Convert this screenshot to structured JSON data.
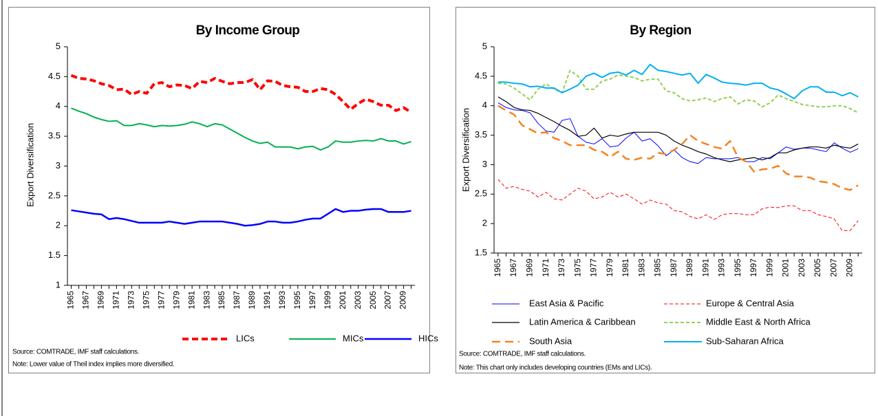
{
  "chart_data": [
    {
      "type": "line",
      "title": "By Income Group",
      "y_label": "Export Diversification",
      "categories": [
        "1965",
        null,
        "1967",
        null,
        "1969",
        null,
        "1971",
        null,
        "1973",
        null,
        "1975",
        null,
        "1977",
        null,
        "1979",
        null,
        "1981",
        null,
        "1983",
        null,
        "1985",
        null,
        "1987",
        null,
        "1989",
        null,
        "1991",
        null,
        "1993",
        null,
        "1995",
        null,
        "1997",
        null,
        "1999",
        null,
        "2001",
        null,
        "2003",
        null,
        "2005",
        null,
        "2007",
        null,
        "2009",
        null
      ],
      "ylim": [
        1,
        5
      ],
      "yticks": [
        1,
        1.5,
        2,
        2.5,
        3,
        3.5,
        4,
        4.5,
        5
      ],
      "grid": false,
      "legend": "bottom",
      "series": [
        {
          "name": "LICs",
          "color": "#ff0000",
          "line_style": "dashed",
          "values": [
            4.52,
            4.47,
            4.46,
            4.43,
            4.38,
            4.35,
            4.28,
            4.29,
            4.2,
            4.25,
            4.22,
            4.38,
            4.4,
            4.33,
            4.36,
            4.35,
            4.3,
            4.42,
            4.4,
            4.47,
            4.42,
            4.38,
            4.4,
            4.4,
            4.45,
            4.28,
            4.43,
            4.42,
            4.35,
            4.33,
            4.32,
            4.25,
            4.25,
            4.3,
            4.28,
            4.2,
            4.08,
            3.95,
            4.05,
            4.12,
            4.08,
            4.02,
            4.02,
            3.93,
            3.98,
            3.9
          ]
        },
        {
          "name": "MICs",
          "color": "#00b050",
          "line_style": "solid",
          "values": [
            3.97,
            3.92,
            3.88,
            3.82,
            3.78,
            3.75,
            3.76,
            3.68,
            3.68,
            3.71,
            3.69,
            3.66,
            3.68,
            3.67,
            3.68,
            3.7,
            3.74,
            3.71,
            3.66,
            3.71,
            3.69,
            3.62,
            3.55,
            3.48,
            3.42,
            3.38,
            3.4,
            3.32,
            3.32,
            3.32,
            3.29,
            3.32,
            3.33,
            3.27,
            3.32,
            3.42,
            3.4,
            3.4,
            3.42,
            3.43,
            3.42,
            3.46,
            3.42,
            3.42,
            3.37,
            3.41
          ]
        },
        {
          "name": "HICs",
          "color": "#0000ff",
          "line_style": "solid",
          "values": [
            2.26,
            2.24,
            2.22,
            2.2,
            2.19,
            2.11,
            2.13,
            2.11,
            2.08,
            2.05,
            2.05,
            2.05,
            2.05,
            2.07,
            2.05,
            2.03,
            2.05,
            2.07,
            2.07,
            2.07,
            2.07,
            2.05,
            2.03,
            2.0,
            2.01,
            2.03,
            2.07,
            2.07,
            2.05,
            2.05,
            2.07,
            2.1,
            2.12,
            2.12,
            2.2,
            2.28,
            2.23,
            2.25,
            2.25,
            2.27,
            2.28,
            2.28,
            2.23,
            2.23,
            2.23,
            2.25
          ]
        }
      ],
      "source": "Source: COMTRADE, IMF staff calculations.",
      "note": "Note: Lower value of Theil index implies more diversified."
    },
    {
      "type": "line",
      "title": "By Region",
      "y_label": "Export Diversification",
      "categories": [
        "1965",
        null,
        "1967",
        null,
        "1969",
        null,
        "1971",
        null,
        "1973",
        null,
        "1975",
        null,
        "1977",
        null,
        "1979",
        null,
        "1981",
        null,
        "1983",
        null,
        "1985",
        null,
        "1987",
        null,
        "1989",
        null,
        "1991",
        null,
        "1993",
        null,
        "1995",
        null,
        "1997",
        null,
        "1999",
        null,
        "2001",
        null,
        "2003",
        null,
        "2005",
        null,
        "2007",
        null,
        "2009",
        null
      ],
      "ylim": [
        1.5,
        5
      ],
      "yticks": [
        1.5,
        2,
        2.5,
        3,
        3.5,
        4,
        4.5,
        5
      ],
      "grid": false,
      "legend": "bottom",
      "series": [
        {
          "name": "East Asia & Pacific",
          "color": "#0000ff",
          "line_style": "solid",
          "values": [
            4.05,
            3.97,
            3.93,
            3.92,
            3.88,
            3.7,
            3.57,
            3.55,
            3.75,
            3.78,
            3.48,
            3.38,
            3.35,
            3.44,
            3.3,
            3.32,
            3.45,
            3.55,
            3.4,
            3.44,
            3.32,
            3.15,
            3.25,
            3.12,
            3.05,
            3.02,
            3.12,
            3.1,
            3.1,
            3.1,
            3.12,
            3.05,
            3.05,
            3.12,
            3.1,
            3.2,
            3.3,
            3.26,
            3.28,
            3.28,
            3.25,
            3.22,
            3.37,
            3.28,
            3.21,
            3.27
          ]
        },
        {
          "name": "Europe & Central Asia",
          "color": "#ff0000",
          "line_style": "dashed",
          "values": [
            2.75,
            2.6,
            2.63,
            2.58,
            2.55,
            2.45,
            2.53,
            2.42,
            2.4,
            2.5,
            2.6,
            2.55,
            2.42,
            2.45,
            2.53,
            2.45,
            2.5,
            2.42,
            2.33,
            2.4,
            2.35,
            2.33,
            2.22,
            2.2,
            2.12,
            2.08,
            2.15,
            2.07,
            2.15,
            2.17,
            2.17,
            2.15,
            2.15,
            2.25,
            2.28,
            2.27,
            2.3,
            2.3,
            2.22,
            2.22,
            2.15,
            2.12,
            2.08,
            1.88,
            1.88,
            2.05
          ]
        },
        {
          "name": "Latin America & Caribbean",
          "color": "#000000",
          "line_style": "solid",
          "values": [
            4.15,
            4.07,
            3.97,
            3.93,
            3.92,
            3.87,
            3.8,
            3.73,
            3.65,
            3.58,
            3.48,
            3.5,
            3.62,
            3.45,
            3.5,
            3.48,
            3.52,
            3.55,
            3.55,
            3.55,
            3.55,
            3.5,
            3.4,
            3.33,
            3.28,
            3.22,
            3.18,
            3.12,
            3.08,
            3.05,
            3.08,
            3.1,
            3.12,
            3.08,
            3.12,
            3.2,
            3.2,
            3.25,
            3.28,
            3.3,
            3.3,
            3.28,
            3.33,
            3.3,
            3.28,
            3.35
          ]
        },
        {
          "name": "Middle East & North Africa",
          "color": "#92d050",
          "line_style": "dashed",
          "values": [
            4.38,
            4.37,
            4.3,
            4.2,
            4.1,
            4.28,
            4.37,
            4.28,
            4.22,
            4.6,
            4.5,
            4.28,
            4.28,
            4.42,
            4.45,
            4.52,
            4.5,
            4.48,
            4.42,
            4.45,
            4.45,
            4.25,
            4.22,
            4.12,
            4.08,
            4.1,
            4.13,
            4.07,
            4.12,
            4.15,
            4.03,
            4.1,
            4.08,
            3.98,
            4.05,
            4.18,
            4.12,
            4.07,
            4.02,
            4.0,
            3.98,
            3.98,
            4.0,
            4.0,
            3.95,
            3.88
          ]
        },
        {
          "name": "South Asia",
          "color": "#f58220",
          "line_style": "long-dashed",
          "values": [
            4.0,
            3.92,
            3.85,
            3.67,
            3.6,
            3.53,
            3.55,
            3.45,
            3.4,
            3.33,
            3.33,
            3.33,
            3.25,
            3.22,
            3.13,
            3.22,
            3.1,
            3.08,
            3.12,
            3.1,
            3.2,
            3.18,
            3.25,
            3.35,
            3.5,
            3.4,
            3.35,
            3.3,
            3.27,
            3.4,
            3.12,
            3.05,
            2.88,
            2.92,
            2.93,
            2.98,
            2.85,
            2.8,
            2.8,
            2.78,
            2.72,
            2.7,
            2.67,
            2.6,
            2.57,
            2.65
          ]
        },
        {
          "name": "Sub-Saharan Africa",
          "color": "#00b0f0",
          "line_style": "solid",
          "values": [
            4.4,
            4.4,
            4.38,
            4.37,
            4.32,
            4.33,
            4.3,
            4.3,
            4.22,
            4.28,
            4.35,
            4.5,
            4.55,
            4.48,
            4.55,
            4.57,
            4.52,
            4.6,
            4.53,
            4.7,
            4.6,
            4.58,
            4.55,
            4.52,
            4.55,
            4.38,
            4.53,
            4.47,
            4.4,
            4.38,
            4.37,
            4.35,
            4.38,
            4.38,
            4.3,
            4.27,
            4.2,
            4.12,
            4.25,
            4.32,
            4.32,
            4.23,
            4.23,
            4.17,
            4.22,
            4.15
          ]
        }
      ],
      "source": "Source: COMTRADE, IMF staff calculations.",
      "note": "Note: This chart only includes developing countries (EMs and LICs)."
    }
  ]
}
